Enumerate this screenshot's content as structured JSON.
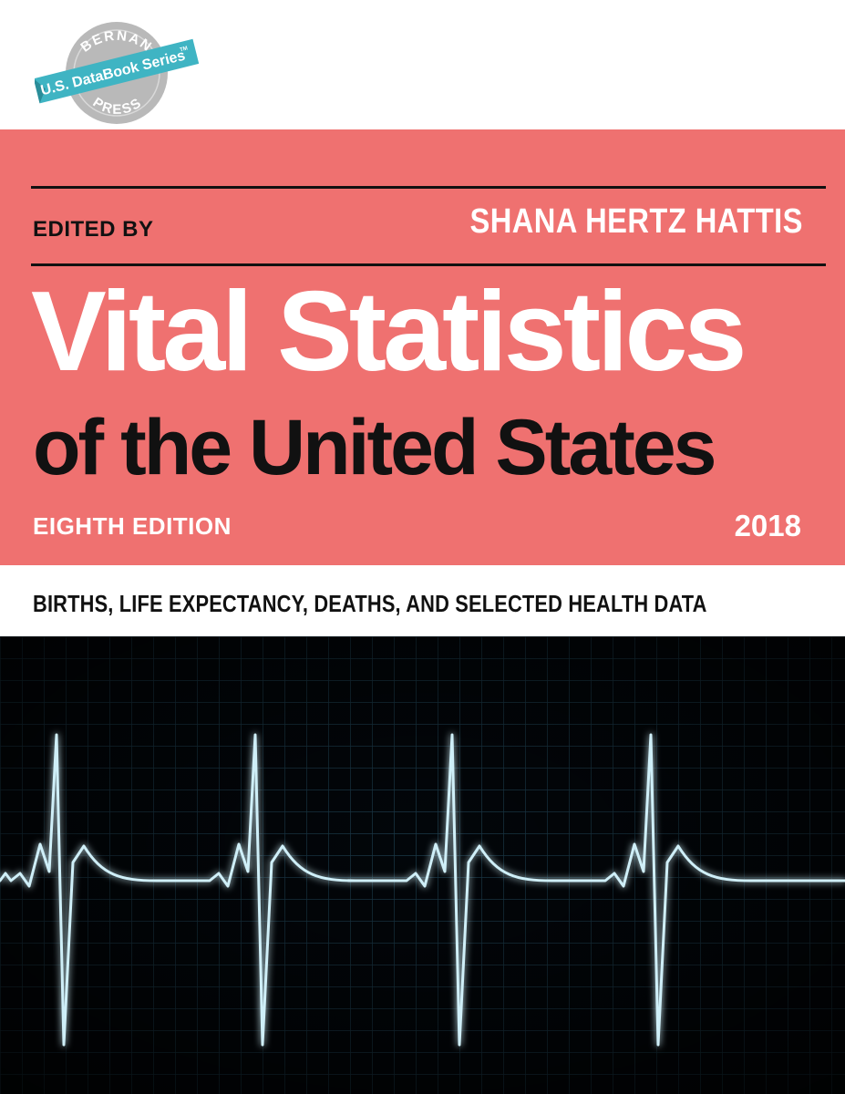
{
  "logo": {
    "publisher_top": "BERNAN",
    "series": "U.S. DataBook Series",
    "trademark": "TM",
    "publisher_bottom": "PRESS"
  },
  "header": {
    "edited_by_label": "EDITED BY",
    "editor_name": "SHANA HERTZ HATTIS"
  },
  "title": {
    "line1": "Vital Statistics",
    "line2": "of the United States"
  },
  "edition": {
    "label": "EIGHTH EDITION",
    "year": "2018"
  },
  "subtitle": "BIRTHS, LIFE EXPECTANCY, DEATHS, AND SELECTED HEALTH DATA",
  "colors": {
    "band": "#ef7170",
    "text_dark": "#111111",
    "text_light": "#ffffff",
    "monitor_bg": "#02060a",
    "ecg_trace": "#cfeff8",
    "logo_ribbon": "#3fb4c3",
    "logo_disc": "#b9b9b9"
  },
  "cover_image": {
    "icon": "ecg-heartbeat-trace"
  }
}
